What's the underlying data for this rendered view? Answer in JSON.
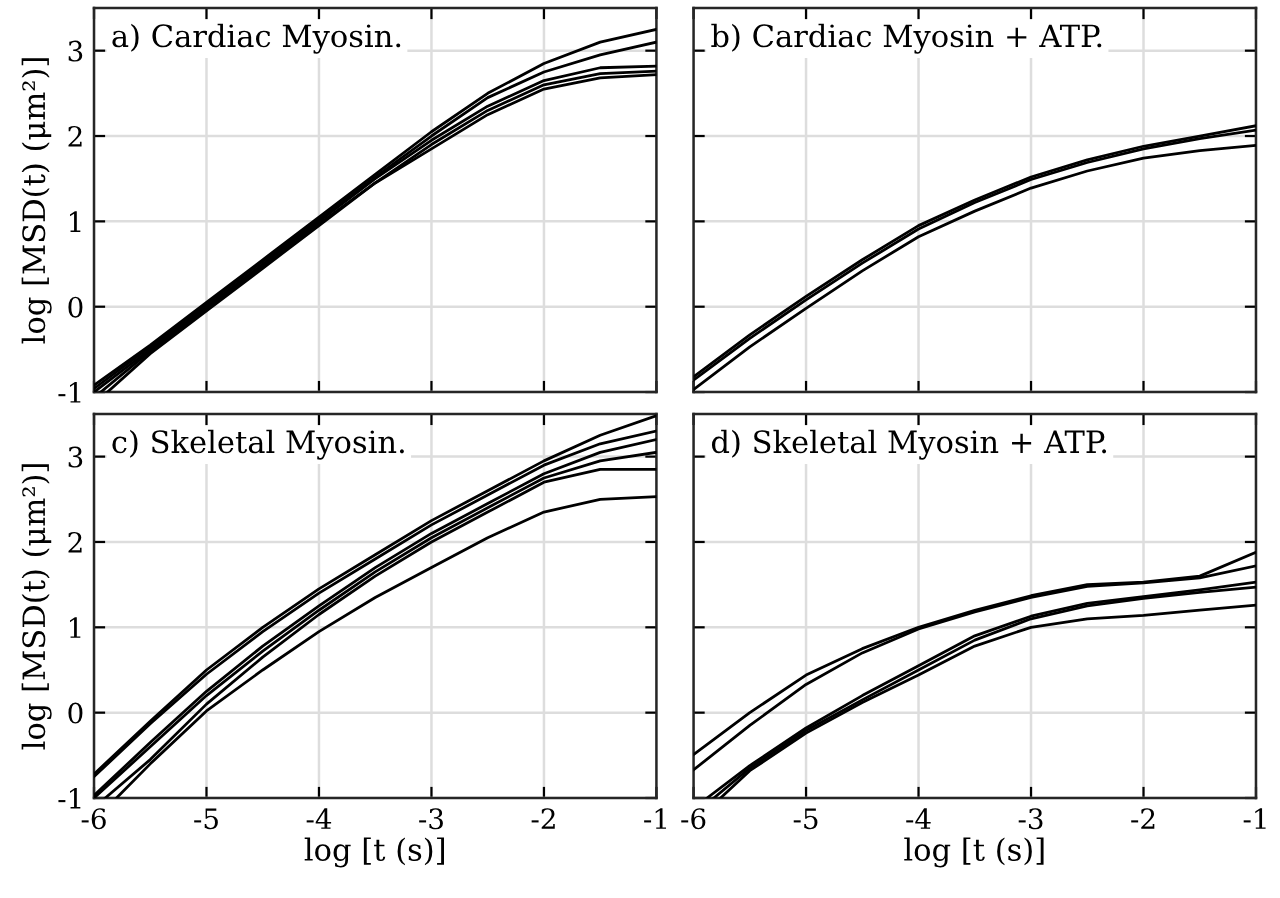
{
  "chart_data": [
    {
      "type": "line",
      "ylabel": "log [MSD(t) (μm²)]",
      "annotations": [
        "a) Cardiac Myosin."
      ],
      "xlim": [
        -6,
        -1
      ],
      "ylim": [
        -1,
        3.5
      ],
      "xticks": [
        -6,
        -5,
        -4,
        -3,
        -2,
        -1
      ],
      "yticks": [
        -1,
        0,
        1,
        2,
        3
      ],
      "grid": true,
      "tick_labels": "y",
      "marker": "none",
      "line_style": "solid",
      "series": [
        {
          "color": "#000000",
          "x": [
            -6,
            -5.5,
            -5,
            -4.5,
            -4,
            -3.5,
            -3,
            -2.5,
            -2,
            -1.5,
            -1
          ],
          "values": [
            -0.92,
            -0.45,
            0.05,
            0.55,
            1.05,
            1.55,
            2.05,
            2.5,
            2.85,
            3.1,
            3.25
          ]
        },
        {
          "color": "#000000",
          "x": [
            -6,
            -5.5,
            -5,
            -4.5,
            -4,
            -3.5,
            -3,
            -2.5,
            -2,
            -1.5,
            -1
          ],
          "values": [
            -0.96,
            -0.47,
            0.03,
            0.53,
            1.02,
            1.52,
            2.0,
            2.45,
            2.75,
            2.95,
            3.1
          ]
        },
        {
          "color": "#000000",
          "x": [
            -6,
            -5.5,
            -5,
            -4.5,
            -4,
            -3.5,
            -3,
            -2.5,
            -2,
            -1.5,
            -1
          ],
          "values": [
            -1,
            -0.5,
            0.0,
            0.5,
            1.0,
            1.5,
            1.95,
            2.35,
            2.65,
            2.8,
            2.82
          ]
        },
        {
          "color": "#000000",
          "x": [
            -5.94,
            -5.5,
            -5,
            -4.5,
            -4,
            -3.5,
            -3,
            -2.5,
            -2,
            -1.5,
            -1
          ],
          "values": [
            -1,
            -0.52,
            -0.02,
            0.47,
            0.97,
            1.45,
            1.9,
            2.3,
            2.6,
            2.73,
            2.76
          ]
        },
        {
          "color": "#000000",
          "x": [
            -5.88,
            -5.5,
            -5,
            -4.5,
            -4,
            -3.5,
            -3,
            -2.5,
            -2,
            -1.5,
            -1
          ],
          "values": [
            -1,
            -0.55,
            -0.05,
            0.45,
            0.95,
            1.45,
            1.85,
            2.25,
            2.55,
            2.68,
            2.72
          ]
        }
      ]
    },
    {
      "type": "line",
      "annotations": [
        "b) Cardiac Myosin + ATP."
      ],
      "xlim": [
        -6,
        -1
      ],
      "ylim": [
        -1,
        3.5
      ],
      "xticks": [
        -6,
        -5,
        -4,
        -3,
        -2,
        -1
      ],
      "yticks": [
        -1,
        0,
        1,
        2,
        3
      ],
      "grid": true,
      "tick_labels": false,
      "marker": "none",
      "line_style": "solid",
      "series": [
        {
          "color": "#000000",
          "x": [
            -6,
            -5.5,
            -5,
            -4.5,
            -4,
            -3.5,
            -3,
            -2.5,
            -2,
            -1.5,
            -1
          ],
          "values": [
            -0.82,
            -0.33,
            0.12,
            0.55,
            0.95,
            1.25,
            1.52,
            1.72,
            1.88,
            2.0,
            2.12
          ]
        },
        {
          "color": "#000000",
          "x": [
            -6,
            -5.5,
            -5,
            -4.5,
            -4,
            -3.5,
            -3,
            -2.5,
            -2,
            -1.5,
            -1
          ],
          "values": [
            -0.86,
            -0.37,
            0.08,
            0.51,
            0.91,
            1.22,
            1.49,
            1.69,
            1.85,
            1.97,
            2.07
          ]
        },
        {
          "color": "#000000",
          "x": [
            -6,
            -5.5,
            -5,
            -4.5,
            -4,
            -3.5,
            -3,
            -2.5,
            -2,
            -1.5,
            -1
          ],
          "values": [
            -0.97,
            -0.47,
            -0.02,
            0.42,
            0.82,
            1.12,
            1.39,
            1.59,
            1.74,
            1.83,
            1.89
          ]
        }
      ]
    },
    {
      "type": "line",
      "xlabel": "log [t (s)]",
      "ylabel": "log [MSD(t) (μm²)]",
      "annotations": [
        "c) Skeletal Myosin."
      ],
      "xlim": [
        -6,
        -1
      ],
      "ylim": [
        -1,
        3.5
      ],
      "xticks": [
        -6,
        -5,
        -4,
        -3,
        -2,
        -1
      ],
      "yticks": [
        -1,
        0,
        1,
        2,
        3
      ],
      "grid": true,
      "marker": "none",
      "line_style": "solid",
      "series": [
        {
          "color": "#000000",
          "x": [
            -6,
            -5.5,
            -5,
            -4.5,
            -4,
            -3.5,
            -3,
            -2.5,
            -2,
            -1.5,
            -1
          ],
          "values": [
            -0.72,
            -0.1,
            0.5,
            1.0,
            1.45,
            1.85,
            2.25,
            2.6,
            2.95,
            3.25,
            3.48
          ]
        },
        {
          "color": "#000000",
          "x": [
            -6,
            -5.5,
            -5,
            -4.5,
            -4,
            -3.5,
            -3,
            -2.5,
            -2,
            -1.5,
            -1
          ],
          "values": [
            -0.75,
            -0.13,
            0.45,
            0.95,
            1.4,
            1.8,
            2.2,
            2.55,
            2.9,
            3.15,
            3.3
          ]
        },
        {
          "color": "#000000",
          "x": [
            -6,
            -5.5,
            -5,
            -4.5,
            -4,
            -3.5,
            -3,
            -2.5,
            -2,
            -1.5,
            -1
          ],
          "values": [
            -0.97,
            -0.35,
            0.25,
            0.78,
            1.25,
            1.7,
            2.1,
            2.45,
            2.8,
            3.05,
            3.2
          ]
        },
        {
          "color": "#000000",
          "x": [
            -6,
            -5.5,
            -5,
            -4.5,
            -4,
            -3.5,
            -3,
            -2.5,
            -2,
            -1.5,
            -1
          ],
          "values": [
            -1,
            -0.4,
            0.2,
            0.72,
            1.2,
            1.65,
            2.05,
            2.4,
            2.75,
            2.95,
            3.05
          ]
        },
        {
          "color": "#000000",
          "x": [
            -5.9,
            -5.5,
            -5,
            -4.5,
            -4,
            -3.5,
            -3,
            -2.5,
            -2,
            -1.5,
            -1
          ],
          "values": [
            -1,
            -0.55,
            0.1,
            0.65,
            1.15,
            1.6,
            2.0,
            2.35,
            2.7,
            2.85,
            2.85
          ]
        },
        {
          "color": "#000000",
          "x": [
            -5.8,
            -5.5,
            -5,
            -4.5,
            -4,
            -3.5,
            -3,
            -2.5,
            -2,
            -1.5,
            -1
          ],
          "values": [
            -1,
            -0.6,
            0.02,
            0.5,
            0.95,
            1.35,
            1.7,
            2.05,
            2.35,
            2.5,
            2.53
          ]
        }
      ]
    },
    {
      "type": "line",
      "xlabel": "log [t (s)]",
      "annotations": [
        "d) Skeletal Myosin + ATP."
      ],
      "xlim": [
        -6,
        -1
      ],
      "ylim": [
        -1,
        3.5
      ],
      "xticks": [
        -6,
        -5,
        -4,
        -3,
        -2,
        -1
      ],
      "yticks": [
        -1,
        0,
        1,
        2,
        3
      ],
      "grid": true,
      "tick_labels": "x",
      "marker": "none",
      "line_style": "solid",
      "series": [
        {
          "color": "#000000",
          "x": [
            -6,
            -5.5,
            -5,
            -4.5,
            -4,
            -3.5,
            -3,
            -2.5,
            -2,
            -1.5,
            -1
          ],
          "values": [
            -0.49,
            0.0,
            0.44,
            0.75,
            1.0,
            1.2,
            1.37,
            1.5,
            1.53,
            1.6,
            1.88
          ]
        },
        {
          "color": "#000000",
          "x": [
            -6,
            -5.5,
            -5,
            -4.5,
            -4,
            -3.5,
            -3,
            -2.5,
            -2,
            -1.5,
            -1
          ],
          "values": [
            -0.67,
            -0.15,
            0.33,
            0.7,
            0.98,
            1.18,
            1.35,
            1.48,
            1.52,
            1.58,
            1.72
          ]
        },
        {
          "color": "#000000",
          "x": [
            -5.88,
            -5.5,
            -5,
            -4.5,
            -4,
            -3.5,
            -3,
            -2.5,
            -2,
            -1.5,
            -1
          ],
          "values": [
            -1,
            -0.62,
            -0.18,
            0.2,
            0.55,
            0.9,
            1.13,
            1.28,
            1.36,
            1.44,
            1.53
          ]
        },
        {
          "color": "#000000",
          "x": [
            -5.82,
            -5.5,
            -5,
            -4.5,
            -4,
            -3.5,
            -3,
            -2.5,
            -2,
            -1.5,
            -1
          ],
          "values": [
            -1,
            -0.65,
            -0.21,
            0.15,
            0.5,
            0.85,
            1.1,
            1.25,
            1.34,
            1.41,
            1.47
          ]
        },
        {
          "color": "#000000",
          "x": [
            -5.76,
            -5.5,
            -5,
            -4.5,
            -4,
            -3.5,
            -3,
            -2.5,
            -2,
            -1.5,
            -1
          ],
          "values": [
            -1,
            -0.68,
            -0.24,
            0.12,
            0.44,
            0.78,
            1.0,
            1.1,
            1.14,
            1.2,
            1.26
          ]
        }
      ]
    }
  ]
}
